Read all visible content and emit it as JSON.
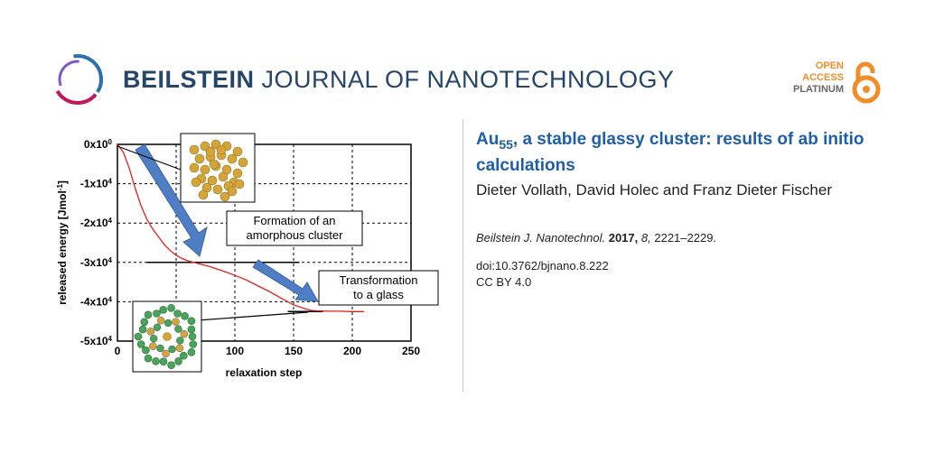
{
  "header": {
    "journal_bold": "BEILSTEIN",
    "journal_rest": " JOURNAL OF NANOTECHNOLOGY",
    "oa_line1": "OPEN",
    "oa_line2": "ACCESS",
    "oa_line3": "PLATINUM"
  },
  "paper": {
    "title_main": "Au",
    "title_sub": "55",
    "title_rest": ", a stable glassy cluster: results of ab initio calculations",
    "authors": "Dieter Vollath, David Holec and Franz Dieter Fischer",
    "journal_abbrev": "Beilstein J. Nanotechnol.",
    "year": "2017,",
    "volume": "8,",
    "pages": "2221–2229.",
    "doi": "doi:10.3762/bjnano.8.222",
    "license": "CC BY 4.0"
  },
  "colors": {
    "journal_blue": "#24466b",
    "title_blue": "#1f5fa8",
    "oa_orange": "#f28c28",
    "curve_red": "#e32020",
    "arrow_blue": "#4f7ec4"
  },
  "chart_data": {
    "type": "line",
    "xlabel": "relaxation step",
    "ylabel": "released energy [Jmol",
    "ylabel_sup": "-1",
    "ylabel_end": "]",
    "xlim": [
      0,
      250
    ],
    "ylim": [
      -50000,
      0
    ],
    "xticks": [
      "0",
      "50",
      "100",
      "150",
      "200",
      "250"
    ],
    "yticks": [
      {
        "base": "0x10",
        "exp": "0"
      },
      {
        "base": "-1x10",
        "exp": "4"
      },
      {
        "base": "-2x10",
        "exp": "4"
      },
      {
        "base": "-3x10",
        "exp": "4"
      },
      {
        "base": "-4x10",
        "exp": "4"
      },
      {
        "base": "-5x10",
        "exp": "4"
      }
    ],
    "grid": true,
    "annotation_1": "Formation of an",
    "annotation_1b": "amorphous cluster",
    "annotation_2": "Transformation",
    "annotation_2b": "to a glass",
    "series": [
      {
        "x": [
          0,
          5,
          10,
          15,
          20,
          25,
          30,
          35,
          40,
          45,
          50,
          55,
          60,
          65,
          70,
          80,
          90,
          100,
          110,
          120,
          130,
          140,
          150,
          160,
          165,
          170,
          180,
          190,
          200,
          210
        ],
        "y": [
          0,
          -2000,
          -6000,
          -11000,
          -15500,
          -19000,
          -21500,
          -23500,
          -25500,
          -27000,
          -28200,
          -29000,
          -29600,
          -30000,
          -30400,
          -31200,
          -32200,
          -33300,
          -34500,
          -36000,
          -37500,
          -39200,
          -40800,
          -41800,
          -42200,
          -42300,
          -42400,
          -42400,
          -42500,
          -42500
        ]
      }
    ],
    "reference_lines": [
      {
        "y": -30000,
        "x_from": 25,
        "x_to": 155
      },
      {
        "y": -42500,
        "x_from": 145,
        "x_to": 175
      }
    ]
  }
}
